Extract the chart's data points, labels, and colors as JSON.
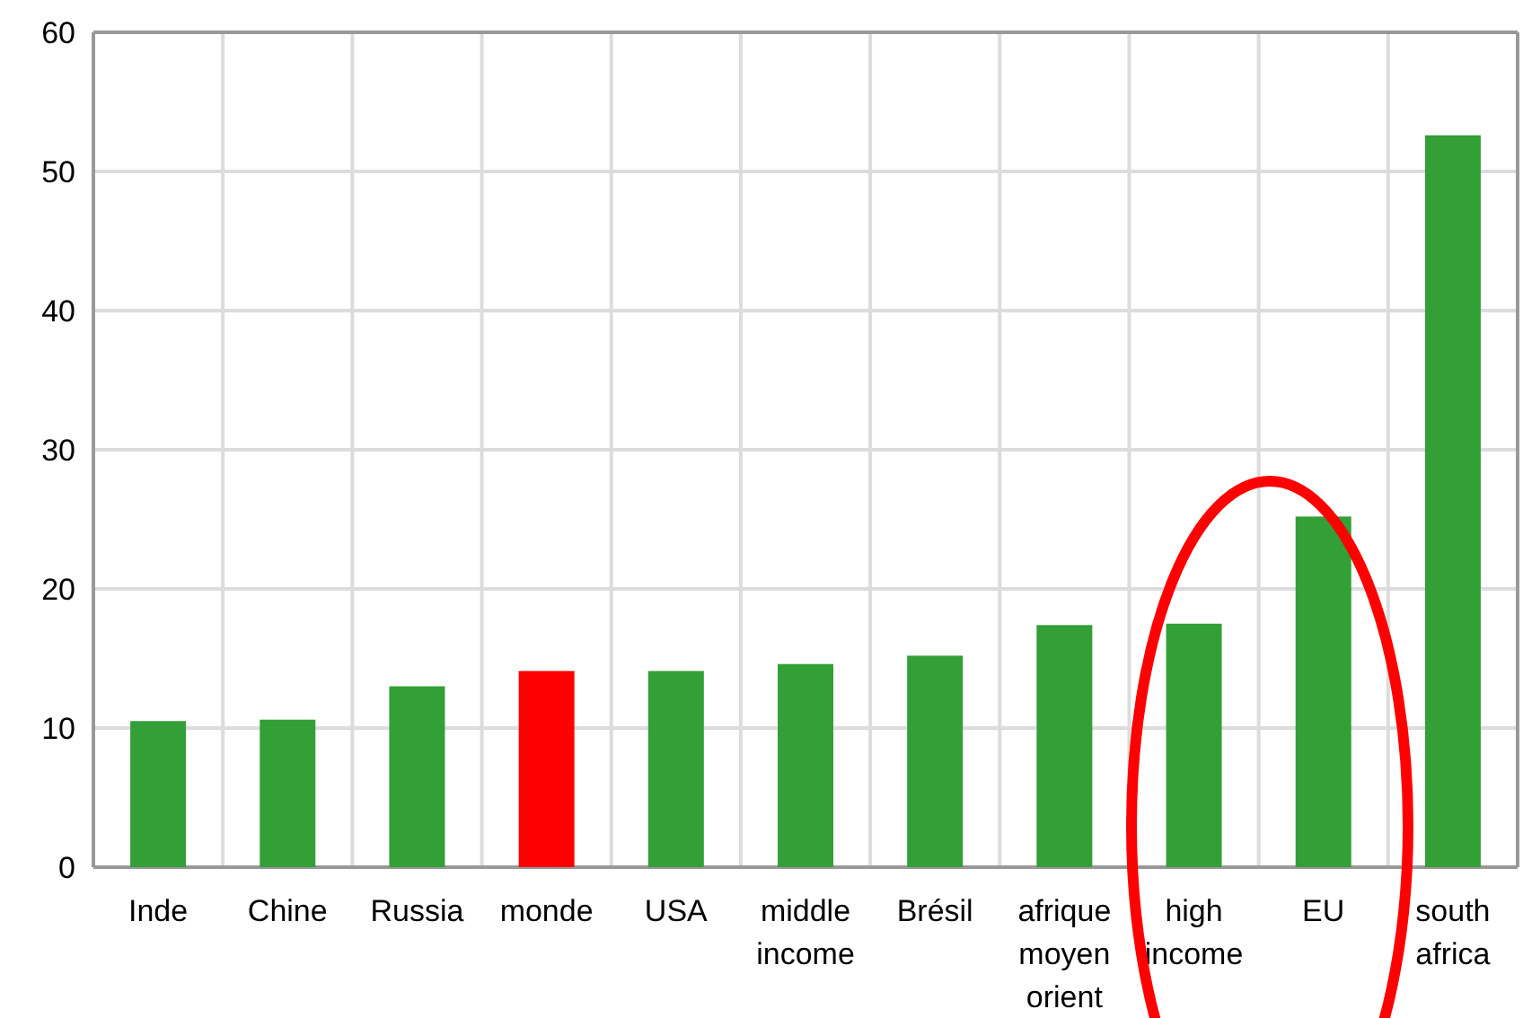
{
  "chart_data": {
    "type": "bar",
    "categories": [
      "Inde",
      "Chine",
      "Russia",
      "monde",
      "USA",
      "middle income",
      "Brésil",
      "afrique moyen orient",
      "high income",
      "EU",
      "south africa"
    ],
    "values": [
      10.5,
      10.6,
      13,
      14.1,
      14.1,
      14.6,
      15.2,
      17.4,
      17.5,
      25.2,
      52.6
    ],
    "colors": [
      "#339f37",
      "#339f37",
      "#339f37",
      "#ff0000",
      "#339f37",
      "#339f37",
      "#339f37",
      "#339f37",
      "#339f37",
      "#339f37",
      "#339f37"
    ],
    "ylim": [
      0,
      60
    ],
    "yticks": [
      0,
      10,
      20,
      30,
      40,
      50,
      60
    ],
    "grid": true
  }
}
